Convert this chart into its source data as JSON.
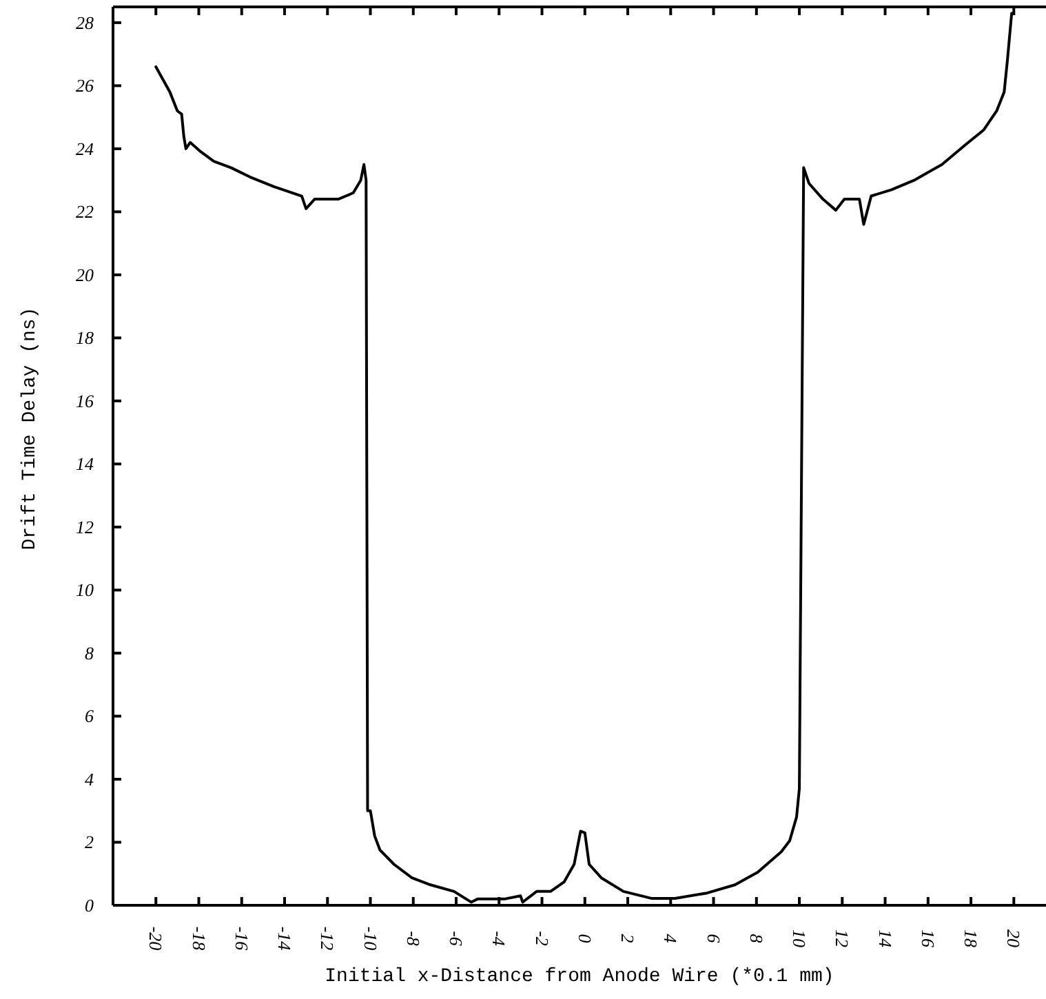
{
  "chart_data": {
    "type": "line",
    "xlabel": "Initial x-Distance from Anode Wire (*0.1 mm)",
    "ylabel": "Drift Time Delay (ns)",
    "xlim": [
      -22,
      21.5
    ],
    "ylim": [
      0,
      28.5
    ],
    "xticks": [
      -20,
      -18,
      -16,
      -14,
      -12,
      -10,
      -8,
      -6,
      -4,
      -2,
      0,
      2,
      4,
      6,
      8,
      10,
      12,
      14,
      16,
      18,
      20
    ],
    "yticks": [
      0,
      2,
      4,
      6,
      8,
      10,
      12,
      14,
      16,
      18,
      20,
      22,
      24,
      26,
      28
    ],
    "grid": false,
    "marker": "none",
    "line_style": "solid",
    "series": [
      {
        "color": "#000000",
        "x": [
          -20.0,
          -19.35,
          -19.0,
          -18.8,
          -18.7,
          -18.6,
          -18.4,
          -17.9,
          -17.3,
          -16.5,
          -15.6,
          -14.5,
          -13.2,
          -13.0,
          -12.6,
          -11.5,
          -10.8,
          -10.45,
          -10.3,
          -10.2,
          -10.13,
          -10.0,
          -9.8,
          -9.55,
          -8.9,
          -8.06,
          -7.2,
          -6.1,
          -5.3,
          -5.0,
          -3.75,
          -3.0,
          -2.9,
          -2.25,
          -1.6,
          -0.97,
          -0.5,
          -0.2,
          0,
          0.2,
          0.77,
          1.8,
          3.1,
          4.2,
          5.7,
          7.0,
          8.06,
          9.16,
          9.55,
          9.87,
          10.0,
          10.2,
          10.45,
          11.1,
          11.7,
          12.1,
          12.8,
          13.0,
          13.35,
          14.3,
          15.35,
          16.65,
          17.7,
          18.6,
          19.2,
          19.55,
          19.7,
          19.9
        ],
        "values": [
          26.6,
          25.8,
          25.2,
          25.1,
          24.4,
          24.0,
          24.2,
          23.9,
          23.6,
          23.4,
          23.1,
          22.8,
          22.5,
          22.1,
          22.4,
          22.4,
          22.6,
          23.0,
          23.5,
          23.0,
          3.0,
          3.0,
          2.2,
          1.75,
          1.3,
          0.87,
          0.65,
          0.44,
          0.1,
          0.2,
          0.2,
          0.3,
          0.1,
          0.44,
          0.44,
          0.74,
          1.3,
          2.35,
          2.3,
          1.3,
          0.87,
          0.44,
          0.22,
          0.22,
          0.39,
          0.65,
          1.05,
          1.7,
          2.05,
          2.8,
          3.7,
          23.4,
          22.9,
          22.4,
          22.05,
          22.4,
          22.4,
          21.6,
          22.5,
          22.7,
          23.0,
          23.5,
          24.1,
          24.6,
          25.2,
          25.8,
          26.8,
          28.3
        ]
      }
    ]
  }
}
